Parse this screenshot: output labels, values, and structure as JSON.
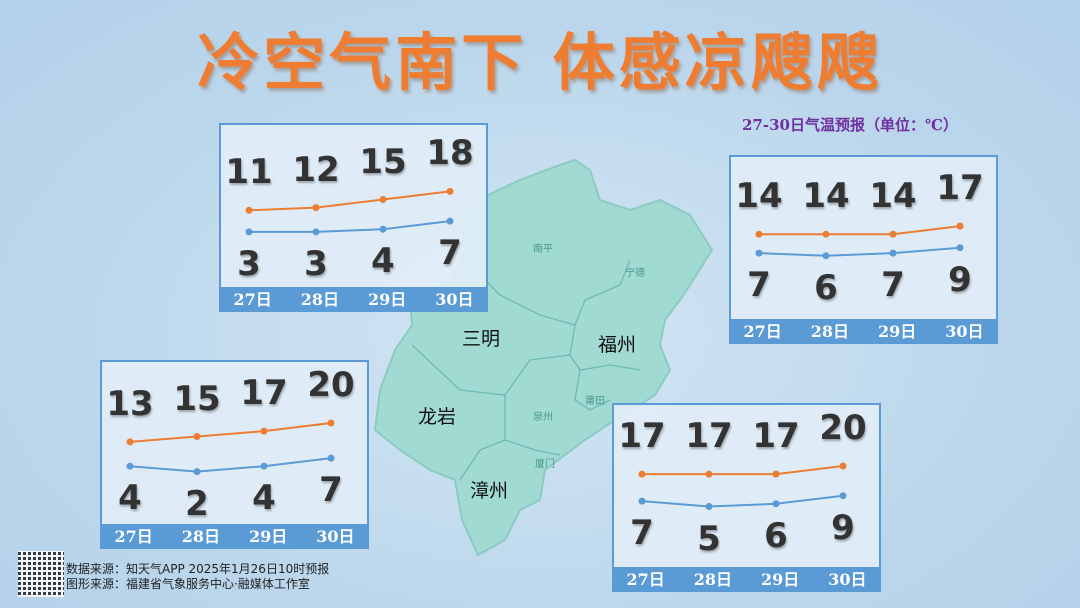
{
  "title": "冷空气南下 体感凉飕飕",
  "unit_note": "27-30日气温预报（单位：℃）",
  "colors": {
    "high": "#ed7d31",
    "low": "#5b9bd5",
    "title": "#ee7d32",
    "map": "#a0dad2"
  },
  "map_labels": {
    "cities": [
      "三明",
      "福州",
      "龙岩",
      "漳州"
    ],
    "minor": [
      "南平",
      "宁德",
      "莆田",
      "泉州",
      "厦门"
    ]
  },
  "panels": [
    {
      "city": "三明",
      "days": [
        "27日",
        "28日",
        "29日",
        "30日"
      ],
      "high": [
        11,
        12,
        15,
        18
      ],
      "low": [
        3,
        3,
        4,
        7
      ]
    },
    {
      "city": "福州",
      "days": [
        "27日",
        "28日",
        "29日",
        "30日"
      ],
      "high": [
        14,
        14,
        14,
        17
      ],
      "low": [
        7,
        6,
        7,
        9
      ]
    },
    {
      "city": "龙岩",
      "days": [
        "27日",
        "28日",
        "29日",
        "30日"
      ],
      "high": [
        13,
        15,
        17,
        20
      ],
      "low": [
        4,
        2,
        4,
        7
      ]
    },
    {
      "city": "漳州",
      "days": [
        "27日",
        "28日",
        "29日",
        "30日"
      ],
      "high": [
        17,
        17,
        17,
        20
      ],
      "low": [
        7,
        5,
        6,
        9
      ]
    }
  ],
  "footer": {
    "data_source": "数据来源：知天气APP 2025年1月26日10时预报",
    "graphic_source": "图形来源：福建省气象服务中心·融媒体工作室"
  }
}
